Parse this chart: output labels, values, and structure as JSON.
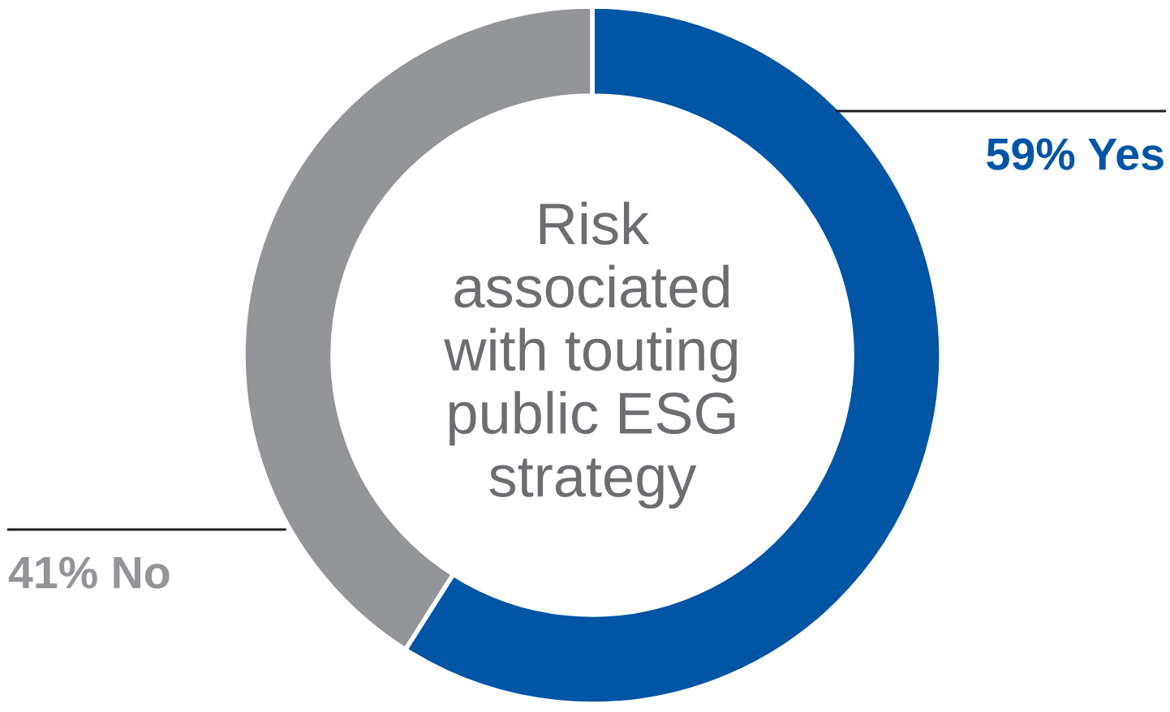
{
  "chart_data": {
    "type": "donut",
    "title": "Risk\nassociated\nwith touting\npublic ESG\nstrategy",
    "categories": [
      "Yes",
      "No"
    ],
    "values": [
      59,
      41
    ],
    "value_labels": [
      "59%",
      "41%"
    ],
    "colors": [
      "#0055a5",
      "#939598"
    ]
  }
}
